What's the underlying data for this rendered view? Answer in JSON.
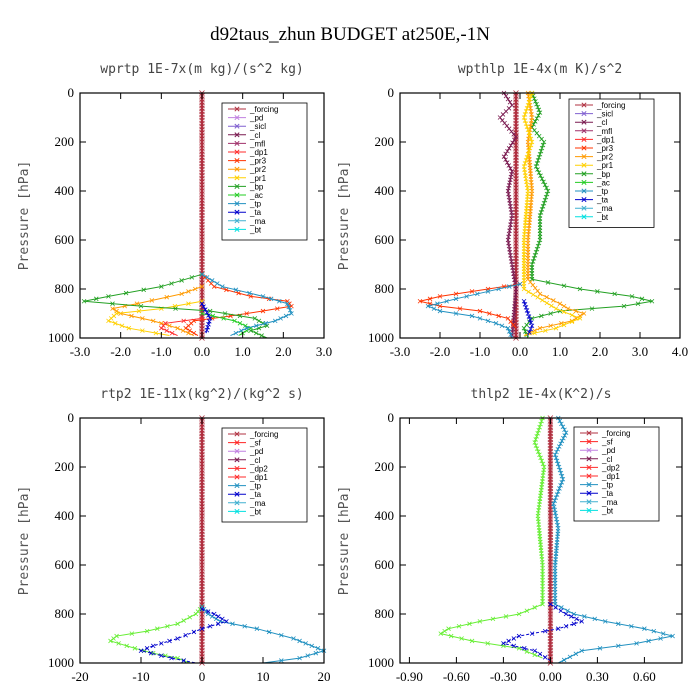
{
  "figure_title": "d92taus_zhun  BUDGET at250E,-1N",
  "colors": {
    "_forcing": "#b03040",
    "_pd": "#c080e0",
    "_sicl": "#8060d0",
    "_cl": "#7a1a50",
    "_mfl": "#a0306a",
    "_dp1": "#ff2a2a",
    "_dp2": "#ff2a2a",
    "_pr3": "#ff3300",
    "_pr2": "#ff9a00",
    "_pr1": "#ffd000",
    "_bp": "#22a022",
    "_ac": "#22cc22",
    "_tp": "#2090c0",
    "_ta": "#0000cc",
    "_ma": "#40b0d0",
    "_bt": "#00e0e0",
    "_sf": "#ff2222",
    "_cl2": "#ffd400",
    "_dp2b": "#30c030",
    "_dp1b": "#66ee33"
  },
  "chart_data": [
    {
      "type": "line",
      "title": "wprtp  1E-7x(m kg)/(s^2 kg)",
      "ylabel": "Pressure [hPa]",
      "xlim": [
        -3.0,
        3.0
      ],
      "ylim": [
        1000,
        0
      ],
      "xticks": [
        "-3.0",
        "-2.0",
        "-1.0",
        "0.0",
        "1.0",
        "2.0",
        "3.0"
      ],
      "yticks": [
        "0",
        "200",
        "400",
        "600",
        "800",
        "1000"
      ],
      "legend": [
        "_forcing",
        "_pd",
        "_sicl",
        "_cl",
        "_mfl",
        "_dp1",
        "_pr3",
        "_pr2",
        "_pr1",
        "_bp",
        "_ac",
        "_tp",
        "_ta",
        "_ma",
        "_bt"
      ],
      "series": [
        {
          "name": "_forcing",
          "color": "#b03040",
          "points": [
            [
              0,
              0
            ],
            [
              0,
              1000
            ]
          ]
        },
        {
          "name": "_pr3",
          "color": "#ff3300",
          "points": [
            [
              0,
              740
            ],
            [
              0.3,
              790
            ],
            [
              1.2,
              830
            ],
            [
              2.1,
              850
            ],
            [
              2.2,
              870
            ],
            [
              1.5,
              890
            ],
            [
              0.7,
              910
            ],
            [
              -0.2,
              930
            ],
            [
              -0.4,
              960
            ],
            [
              -0.1,
              990
            ]
          ]
        },
        {
          "name": "_pr2",
          "color": "#ff9a00",
          "points": [
            [
              0,
              790
            ],
            [
              -0.5,
              820
            ],
            [
              -1.6,
              860
            ],
            [
              -2.2,
              880
            ],
            [
              -2.0,
              900
            ],
            [
              -1.2,
              930
            ],
            [
              -0.6,
              960
            ],
            [
              -0.2,
              990
            ]
          ]
        },
        {
          "name": "_pr1",
          "color": "#ffd000",
          "points": [
            [
              0,
              850
            ],
            [
              -1.0,
              880
            ],
            [
              -2.1,
              900
            ],
            [
              -2.3,
              930
            ],
            [
              -1.8,
              960
            ],
            [
              -0.8,
              990
            ]
          ]
        },
        {
          "name": "_bp",
          "color": "#22a022",
          "points": [
            [
              0,
              740
            ],
            [
              -1.0,
              790
            ],
            [
              -2.3,
              830
            ],
            [
              -2.9,
              850
            ],
            [
              -1.5,
              870
            ],
            [
              0.2,
              890
            ],
            [
              1.3,
              920
            ],
            [
              1.6,
              950
            ],
            [
              1.2,
              970
            ],
            [
              1.6,
              1000
            ]
          ]
        },
        {
          "name": "_ac",
          "color": "#22cc22",
          "points": [
            [
              0,
              900
            ],
            [
              0.8,
              930
            ],
            [
              1.2,
              960
            ],
            [
              0.9,
              990
            ]
          ]
        },
        {
          "name": "_tp",
          "color": "#2090c0",
          "points": [
            [
              0,
              740
            ],
            [
              0.5,
              790
            ],
            [
              1.5,
              830
            ],
            [
              2.1,
              860
            ],
            [
              2.2,
              900
            ],
            [
              1.8,
              930
            ],
            [
              1.1,
              960
            ],
            [
              0.7,
              990
            ]
          ]
        },
        {
          "name": "_ta",
          "color": "#0000cc",
          "points": [
            [
              0,
              860
            ],
            [
              0.2,
              920
            ],
            [
              0.1,
              980
            ]
          ]
        },
        {
          "name": "_dp1",
          "color": "#ff2a2a",
          "points": [
            [
              0,
              920
            ],
            [
              -0.9,
              940
            ],
            [
              -1.0,
              960
            ],
            [
              -0.6,
              990
            ]
          ]
        }
      ]
    },
    {
      "type": "line",
      "title": "wpthlp  1E-4x(m K)/s^2",
      "ylabel": "Pressure [hPa]",
      "xlim": [
        -3.0,
        4.0
      ],
      "ylim": [
        1000,
        0
      ],
      "xticks": [
        "-3.0",
        "-2.0",
        "-1.0",
        "0.0",
        "1.0",
        "2.0",
        "3.0",
        "4.0"
      ],
      "yticks": [
        "0",
        "200",
        "400",
        "600",
        "800",
        "1000"
      ],
      "legend": [
        "_forcing",
        "_sicl",
        "_cl",
        "_mfl",
        "_dp1",
        "_pr3",
        "_pr2",
        "_pr1",
        "_bp",
        "_ac",
        "_tp",
        "_ta",
        "_ma",
        "_bt"
      ],
      "series": [
        {
          "name": "_forcing",
          "color": "#b03040",
          "points": [
            [
              -0.1,
              0
            ],
            [
              -0.1,
              1000
            ]
          ]
        },
        {
          "name": "_bp",
          "color": "#22a022",
          "points": [
            [
              0.3,
              0
            ],
            [
              0.5,
              80
            ],
            [
              0.3,
              140
            ],
            [
              0.6,
              200
            ],
            [
              0.4,
              300
            ],
            [
              0.7,
              400
            ],
            [
              0.5,
              500
            ],
            [
              0.5,
              600
            ],
            [
              0.3,
              700
            ],
            [
              0.3,
              760
            ],
            [
              1.5,
              800
            ],
            [
              2.8,
              830
            ],
            [
              3.3,
              850
            ],
            [
              2.6,
              870
            ],
            [
              1.0,
              890
            ],
            [
              0.3,
              920
            ],
            [
              0.1,
              960
            ],
            [
              0.2,
              1000
            ]
          ]
        },
        {
          "name": "_pr2",
          "color": "#ff9a00",
          "points": [
            [
              0.2,
              0
            ],
            [
              0.3,
              100
            ],
            [
              0.2,
              200
            ],
            [
              0.3,
              400
            ],
            [
              0.2,
              600
            ],
            [
              0.2,
              760
            ],
            [
              0.5,
              820
            ],
            [
              1.0,
              860
            ],
            [
              1.2,
              880
            ],
            [
              1.6,
              900
            ],
            [
              1.3,
              930
            ],
            [
              0.5,
              960
            ],
            [
              0.1,
              990
            ]
          ]
        },
        {
          "name": "_pr1",
          "color": "#ffd000",
          "points": [
            [
              0.3,
              0
            ],
            [
              0.1,
              100
            ],
            [
              0.3,
              200
            ],
            [
              0.1,
              300
            ],
            [
              0.2,
              400
            ],
            [
              0.1,
              600
            ],
            [
              0.1,
              800
            ],
            [
              0.9,
              880
            ],
            [
              1.5,
              920
            ],
            [
              0.9,
              960
            ],
            [
              0.1,
              990
            ]
          ]
        },
        {
          "name": "_cl",
          "color": "#7a1a50",
          "points": [
            [
              -0.4,
              0
            ],
            [
              -0.2,
              50
            ],
            [
              -0.5,
              100
            ],
            [
              -0.1,
              180
            ],
            [
              -0.4,
              260
            ],
            [
              -0.2,
              320
            ],
            [
              -0.3,
              400
            ],
            [
              -0.2,
              500
            ],
            [
              -0.3,
              600
            ],
            [
              -0.2,
              700
            ],
            [
              -0.1,
              800
            ],
            [
              -0.2,
              1000
            ]
          ]
        },
        {
          "name": "_pr3",
          "color": "#ff3300",
          "points": [
            [
              0,
              780
            ],
            [
              -0.8,
              800
            ],
            [
              -2.0,
              830
            ],
            [
              -2.5,
              850
            ],
            [
              -2.0,
              870
            ],
            [
              -1.0,
              890
            ],
            [
              -0.3,
              920
            ],
            [
              -0.1,
              960
            ]
          ]
        },
        {
          "name": "_tp",
          "color": "#2090c0",
          "points": [
            [
              0,
              780
            ],
            [
              -0.8,
              810
            ],
            [
              -1.6,
              840
            ],
            [
              -2.3,
              870
            ],
            [
              -2.0,
              890
            ],
            [
              -1.2,
              910
            ],
            [
              -0.6,
              940
            ],
            [
              -0.3,
              960
            ],
            [
              -0.2,
              1000
            ]
          ]
        },
        {
          "name": "_ta",
          "color": "#0000cc",
          "points": [
            [
              0.1,
              850
            ],
            [
              0.2,
              900
            ],
            [
              0.3,
              950
            ],
            [
              0.2,
              990
            ]
          ]
        }
      ]
    },
    {
      "type": "line",
      "title": "rtp2  1E-11x(kg^2)/(kg^2 s)",
      "ylabel": "Pressure [hPa]",
      "xlim": [
        -20,
        20
      ],
      "ylim": [
        1000,
        0
      ],
      "xticks": [
        "-20",
        "-10",
        "0",
        "10",
        "20"
      ],
      "yticks": [
        "0",
        "200",
        "400",
        "600",
        "800",
        "1000"
      ],
      "legend": [
        "_forcing",
        "_sf",
        "_pd",
        "_cl",
        "_dp2",
        "_dp1",
        "_tp",
        "_ta",
        "_ma",
        "_bt"
      ],
      "series": [
        {
          "name": "_forcing",
          "color": "#b03040",
          "points": [
            [
              0,
              0
            ],
            [
              0,
              1000
            ]
          ]
        },
        {
          "name": "_dp1",
          "color": "#66ee33",
          "points": [
            [
              0,
              770
            ],
            [
              -1,
              800
            ],
            [
              -4,
              840
            ],
            [
              -9,
              870
            ],
            [
              -14,
              890
            ],
            [
              -15,
              910
            ],
            [
              -11,
              940
            ],
            [
              -8,
              960
            ],
            [
              -4,
              980
            ],
            [
              -2,
              1000
            ]
          ]
        },
        {
          "name": "_tp",
          "color": "#2090c0",
          "points": [
            [
              0,
              770
            ],
            [
              1,
              800
            ],
            [
              3,
              830
            ],
            [
              9,
              860
            ],
            [
              15,
              900
            ],
            [
              18,
              930
            ],
            [
              20,
              950
            ],
            [
              16,
              980
            ],
            [
              10,
              1000
            ]
          ]
        },
        {
          "name": "_ta",
          "color": "#0000cc",
          "points": [
            [
              0,
              780
            ],
            [
              2,
              800
            ],
            [
              4,
              830
            ],
            [
              0,
              860
            ],
            [
              -4,
              900
            ],
            [
              -8,
              930
            ],
            [
              -10,
              950
            ],
            [
              -5,
              980
            ],
            [
              -1,
              1000
            ]
          ]
        }
      ]
    },
    {
      "type": "line",
      "title": "thlp2  1E-4x(K^2)/s",
      "ylabel": "Pressure [hPa]",
      "xlim": [
        -0.96,
        0.84
      ],
      "ylim": [
        1000,
        0
      ],
      "xticks": [
        "-0.90",
        "-0.60",
        "-0.30",
        "0.00",
        "0.30",
        "0.60"
      ],
      "yticks": [
        "0",
        "200",
        "400",
        "600",
        "800",
        "1000"
      ],
      "legend": [
        "_forcing",
        "_sf",
        "_pd",
        "_cl",
        "_dp2",
        "_dp1",
        "_tp",
        "_ta",
        "_ma",
        "_bt"
      ],
      "series": [
        {
          "name": "_forcing",
          "color": "#b03040",
          "points": [
            [
              0,
              0
            ],
            [
              0,
              1000
            ]
          ]
        },
        {
          "name": "_tp",
          "color": "#2090c0",
          "points": [
            [
              0.05,
              0
            ],
            [
              0.1,
              60
            ],
            [
              0.03,
              150
            ],
            [
              0.08,
              250
            ],
            [
              0.02,
              350
            ],
            [
              0.05,
              450
            ],
            [
              0.03,
              600
            ],
            [
              0.03,
              760
            ],
            [
              0.15,
              800
            ],
            [
              0.35,
              830
            ],
            [
              0.6,
              860
            ],
            [
              0.78,
              890
            ],
            [
              0.55,
              920
            ],
            [
              0.2,
              950
            ],
            [
              0.05,
              1000
            ]
          ]
        },
        {
          "name": "_dp1",
          "color": "#66ee33",
          "points": [
            [
              -0.05,
              0
            ],
            [
              -0.1,
              100
            ],
            [
              -0.04,
              200
            ],
            [
              -0.08,
              400
            ],
            [
              -0.05,
              600
            ],
            [
              -0.05,
              760
            ],
            [
              -0.2,
              800
            ],
            [
              -0.45,
              830
            ],
            [
              -0.65,
              860
            ],
            [
              -0.7,
              880
            ],
            [
              -0.5,
              910
            ],
            [
              -0.2,
              940
            ],
            [
              -0.05,
              980
            ]
          ]
        },
        {
          "name": "_ta",
          "color": "#0000cc",
          "points": [
            [
              0,
              760
            ],
            [
              0.1,
              800
            ],
            [
              0.2,
              830
            ],
            [
              0.05,
              860
            ],
            [
              -0.2,
              890
            ],
            [
              -0.3,
              920
            ],
            [
              -0.1,
              950
            ],
            [
              0,
              990
            ]
          ]
        }
      ]
    }
  ]
}
